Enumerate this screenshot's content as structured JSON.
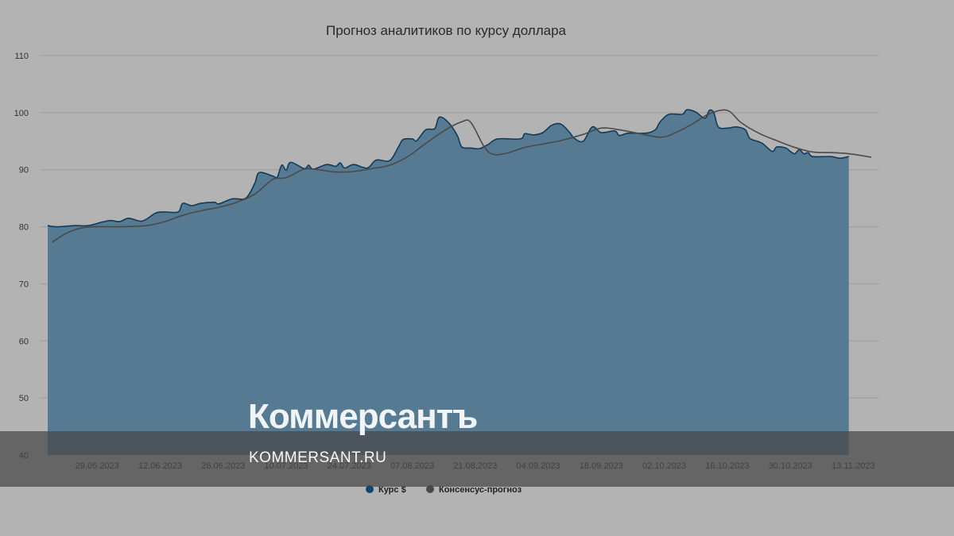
{
  "watermark": {
    "logo_text": "Коммерсантъ",
    "url_text": "KOMMERSANT.RU"
  },
  "colors": {
    "area_fill": "#567a91",
    "area_line": "#0f3b5c",
    "consensus_line": "#4a4a4a",
    "legend_rate": "#12466b",
    "legend_consensus": "#4a4a4a"
  },
  "chart_data": {
    "type": "area",
    "title": "Прогноз аналитиков по курсу доллара",
    "xlabel": "",
    "ylabel": "",
    "ylim": [
      40,
      110
    ],
    "yticks": [
      40,
      50,
      60,
      70,
      80,
      90,
      100,
      110
    ],
    "grid": true,
    "legend_position": "bottom",
    "x_range": [
      "2023-05-18",
      "2023-11-17"
    ],
    "x_tick_labels": [
      "29.05.2023",
      "12.06.2023",
      "26.06.2023",
      "10.07.2023",
      "24.07.2023",
      "07.08.2023",
      "21.08.2023",
      "04.09.2023",
      "18.09.2023",
      "02.10.2023",
      "16.10.2023",
      "30.10.2023",
      "13.11.2023"
    ],
    "x_ticks": [
      "2023-05-29",
      "2023-06-12",
      "2023-06-26",
      "2023-07-10",
      "2023-07-24",
      "2023-08-07",
      "2023-08-21",
      "2023-09-04",
      "2023-09-18",
      "2023-10-02",
      "2023-10-16",
      "2023-10-30",
      "2023-11-13"
    ],
    "series": [
      {
        "name": "Курс $",
        "type": "area",
        "points": [
          [
            "2023-05-18",
            80.2
          ],
          [
            "2023-05-20",
            80.0
          ],
          [
            "2023-05-24",
            80.2
          ],
          [
            "2023-05-27",
            80.2
          ],
          [
            "2023-05-30",
            80.8
          ],
          [
            "2023-06-01",
            81.1
          ],
          [
            "2023-06-03",
            80.9
          ],
          [
            "2023-06-05",
            81.5
          ],
          [
            "2023-06-08",
            81.0
          ],
          [
            "2023-06-11",
            82.4
          ],
          [
            "2023-06-13",
            82.6
          ],
          [
            "2023-06-16",
            82.6
          ],
          [
            "2023-06-17",
            84.1
          ],
          [
            "2023-06-19",
            83.7
          ],
          [
            "2023-06-21",
            84.1
          ],
          [
            "2023-06-24",
            84.3
          ],
          [
            "2023-06-25",
            84.0
          ],
          [
            "2023-06-28",
            84.9
          ],
          [
            "2023-07-01",
            85.0
          ],
          [
            "2023-07-03",
            87.6
          ],
          [
            "2023-07-04",
            89.5
          ],
          [
            "2023-07-07",
            88.9
          ],
          [
            "2023-07-08",
            88.7
          ],
          [
            "2023-07-09",
            90.8
          ],
          [
            "2023-07-10",
            89.9
          ],
          [
            "2023-07-11",
            91.3
          ],
          [
            "2023-07-14",
            90.2
          ],
          [
            "2023-07-15",
            90.8
          ],
          [
            "2023-07-16",
            90.1
          ],
          [
            "2023-07-19",
            90.9
          ],
          [
            "2023-07-21",
            90.6
          ],
          [
            "2023-07-22",
            91.2
          ],
          [
            "2023-07-23",
            90.3
          ],
          [
            "2023-07-25",
            90.9
          ],
          [
            "2023-07-28",
            90.3
          ],
          [
            "2023-07-30",
            91.7
          ],
          [
            "2023-08-02",
            91.6
          ],
          [
            "2023-08-04",
            94.1
          ],
          [
            "2023-08-05",
            95.3
          ],
          [
            "2023-08-07",
            95.4
          ],
          [
            "2023-08-08",
            95.1
          ],
          [
            "2023-08-10",
            97.0
          ],
          [
            "2023-08-12",
            97.2
          ],
          [
            "2023-08-13",
            99.2
          ],
          [
            "2023-08-15",
            98.3
          ],
          [
            "2023-08-17",
            96.0
          ],
          [
            "2023-08-18",
            94.0
          ],
          [
            "2023-08-20",
            93.8
          ],
          [
            "2023-08-22",
            93.7
          ],
          [
            "2023-08-24",
            94.5
          ],
          [
            "2023-08-26",
            95.4
          ],
          [
            "2023-08-31",
            95.4
          ],
          [
            "2023-09-01",
            96.3
          ],
          [
            "2023-09-03",
            96.1
          ],
          [
            "2023-09-05",
            96.5
          ],
          [
            "2023-09-07",
            97.8
          ],
          [
            "2023-09-09",
            98.0
          ],
          [
            "2023-09-11",
            96.5
          ],
          [
            "2023-09-12",
            95.5
          ],
          [
            "2023-09-14",
            95.0
          ],
          [
            "2023-09-16",
            97.5
          ],
          [
            "2023-09-18",
            96.5
          ],
          [
            "2023-09-21",
            96.8
          ],
          [
            "2023-09-22",
            96.0
          ],
          [
            "2023-09-24",
            96.4
          ],
          [
            "2023-09-28",
            96.4
          ],
          [
            "2023-09-30",
            97.0
          ],
          [
            "2023-10-01",
            98.3
          ],
          [
            "2023-10-03",
            99.7
          ],
          [
            "2023-10-06",
            99.7
          ],
          [
            "2023-10-07",
            100.5
          ],
          [
            "2023-10-09",
            100.1
          ],
          [
            "2023-10-11",
            99.0
          ],
          [
            "2023-10-12",
            100.4
          ],
          [
            "2023-10-13",
            100.0
          ],
          [
            "2023-10-14",
            97.5
          ],
          [
            "2023-10-16",
            97.3
          ],
          [
            "2023-10-18",
            97.5
          ],
          [
            "2023-10-20",
            97.0
          ],
          [
            "2023-10-21",
            95.5
          ],
          [
            "2023-10-23",
            94.9
          ],
          [
            "2023-10-24",
            94.5
          ],
          [
            "2023-10-26",
            93.2
          ],
          [
            "2023-10-27",
            94.0
          ],
          [
            "2023-10-29",
            93.8
          ],
          [
            "2023-10-30",
            93.2
          ],
          [
            "2023-10-31",
            92.8
          ],
          [
            "2023-11-01",
            93.5
          ],
          [
            "2023-11-02",
            92.8
          ],
          [
            "2023-11-03",
            93.0
          ],
          [
            "2023-11-04",
            92.3
          ],
          [
            "2023-11-08",
            92.3
          ],
          [
            "2023-11-10",
            92.0
          ],
          [
            "2023-11-12",
            92.3
          ]
        ]
      },
      {
        "name": "Консенсус-прогноз",
        "type": "line",
        "points": [
          [
            "2023-05-19",
            77.3
          ],
          [
            "2023-05-22",
            78.8
          ],
          [
            "2023-05-25",
            79.7
          ],
          [
            "2023-05-28",
            80.0
          ],
          [
            "2023-06-03",
            80.0
          ],
          [
            "2023-06-09",
            80.2
          ],
          [
            "2023-06-13",
            80.9
          ],
          [
            "2023-06-17",
            82.0
          ],
          [
            "2023-06-21",
            82.8
          ],
          [
            "2023-06-25",
            83.4
          ],
          [
            "2023-06-29",
            84.3
          ],
          [
            "2023-07-03",
            85.7
          ],
          [
            "2023-07-07",
            88.3
          ],
          [
            "2023-07-10",
            88.6
          ],
          [
            "2023-07-14",
            90.1
          ],
          [
            "2023-07-17",
            90.0
          ],
          [
            "2023-07-21",
            89.6
          ],
          [
            "2023-07-25",
            89.7
          ],
          [
            "2023-07-29",
            90.2
          ],
          [
            "2023-08-02",
            90.8
          ],
          [
            "2023-08-06",
            92.3
          ],
          [
            "2023-08-10",
            94.6
          ],
          [
            "2023-08-14",
            96.8
          ],
          [
            "2023-08-18",
            98.4
          ],
          [
            "2023-08-20",
            98.3
          ],
          [
            "2023-08-23",
            94.0
          ],
          [
            "2023-08-25",
            92.7
          ],
          [
            "2023-08-28",
            92.9
          ],
          [
            "2023-09-01",
            93.9
          ],
          [
            "2023-09-05",
            94.5
          ],
          [
            "2023-09-09",
            95.1
          ],
          [
            "2023-09-14",
            96.2
          ],
          [
            "2023-09-18",
            97.3
          ],
          [
            "2023-09-22",
            97.0
          ],
          [
            "2023-09-26",
            96.4
          ],
          [
            "2023-10-01",
            95.7
          ],
          [
            "2023-10-04",
            96.3
          ],
          [
            "2023-10-08",
            97.9
          ],
          [
            "2023-10-12",
            99.8
          ],
          [
            "2023-10-16",
            100.4
          ],
          [
            "2023-10-19",
            98.3
          ],
          [
            "2023-10-23",
            96.4
          ],
          [
            "2023-10-27",
            95.1
          ],
          [
            "2023-10-31",
            93.9
          ],
          [
            "2023-11-04",
            93.1
          ],
          [
            "2023-11-08",
            93.0
          ],
          [
            "2023-11-12",
            92.8
          ],
          [
            "2023-11-17",
            92.2
          ]
        ]
      }
    ]
  }
}
